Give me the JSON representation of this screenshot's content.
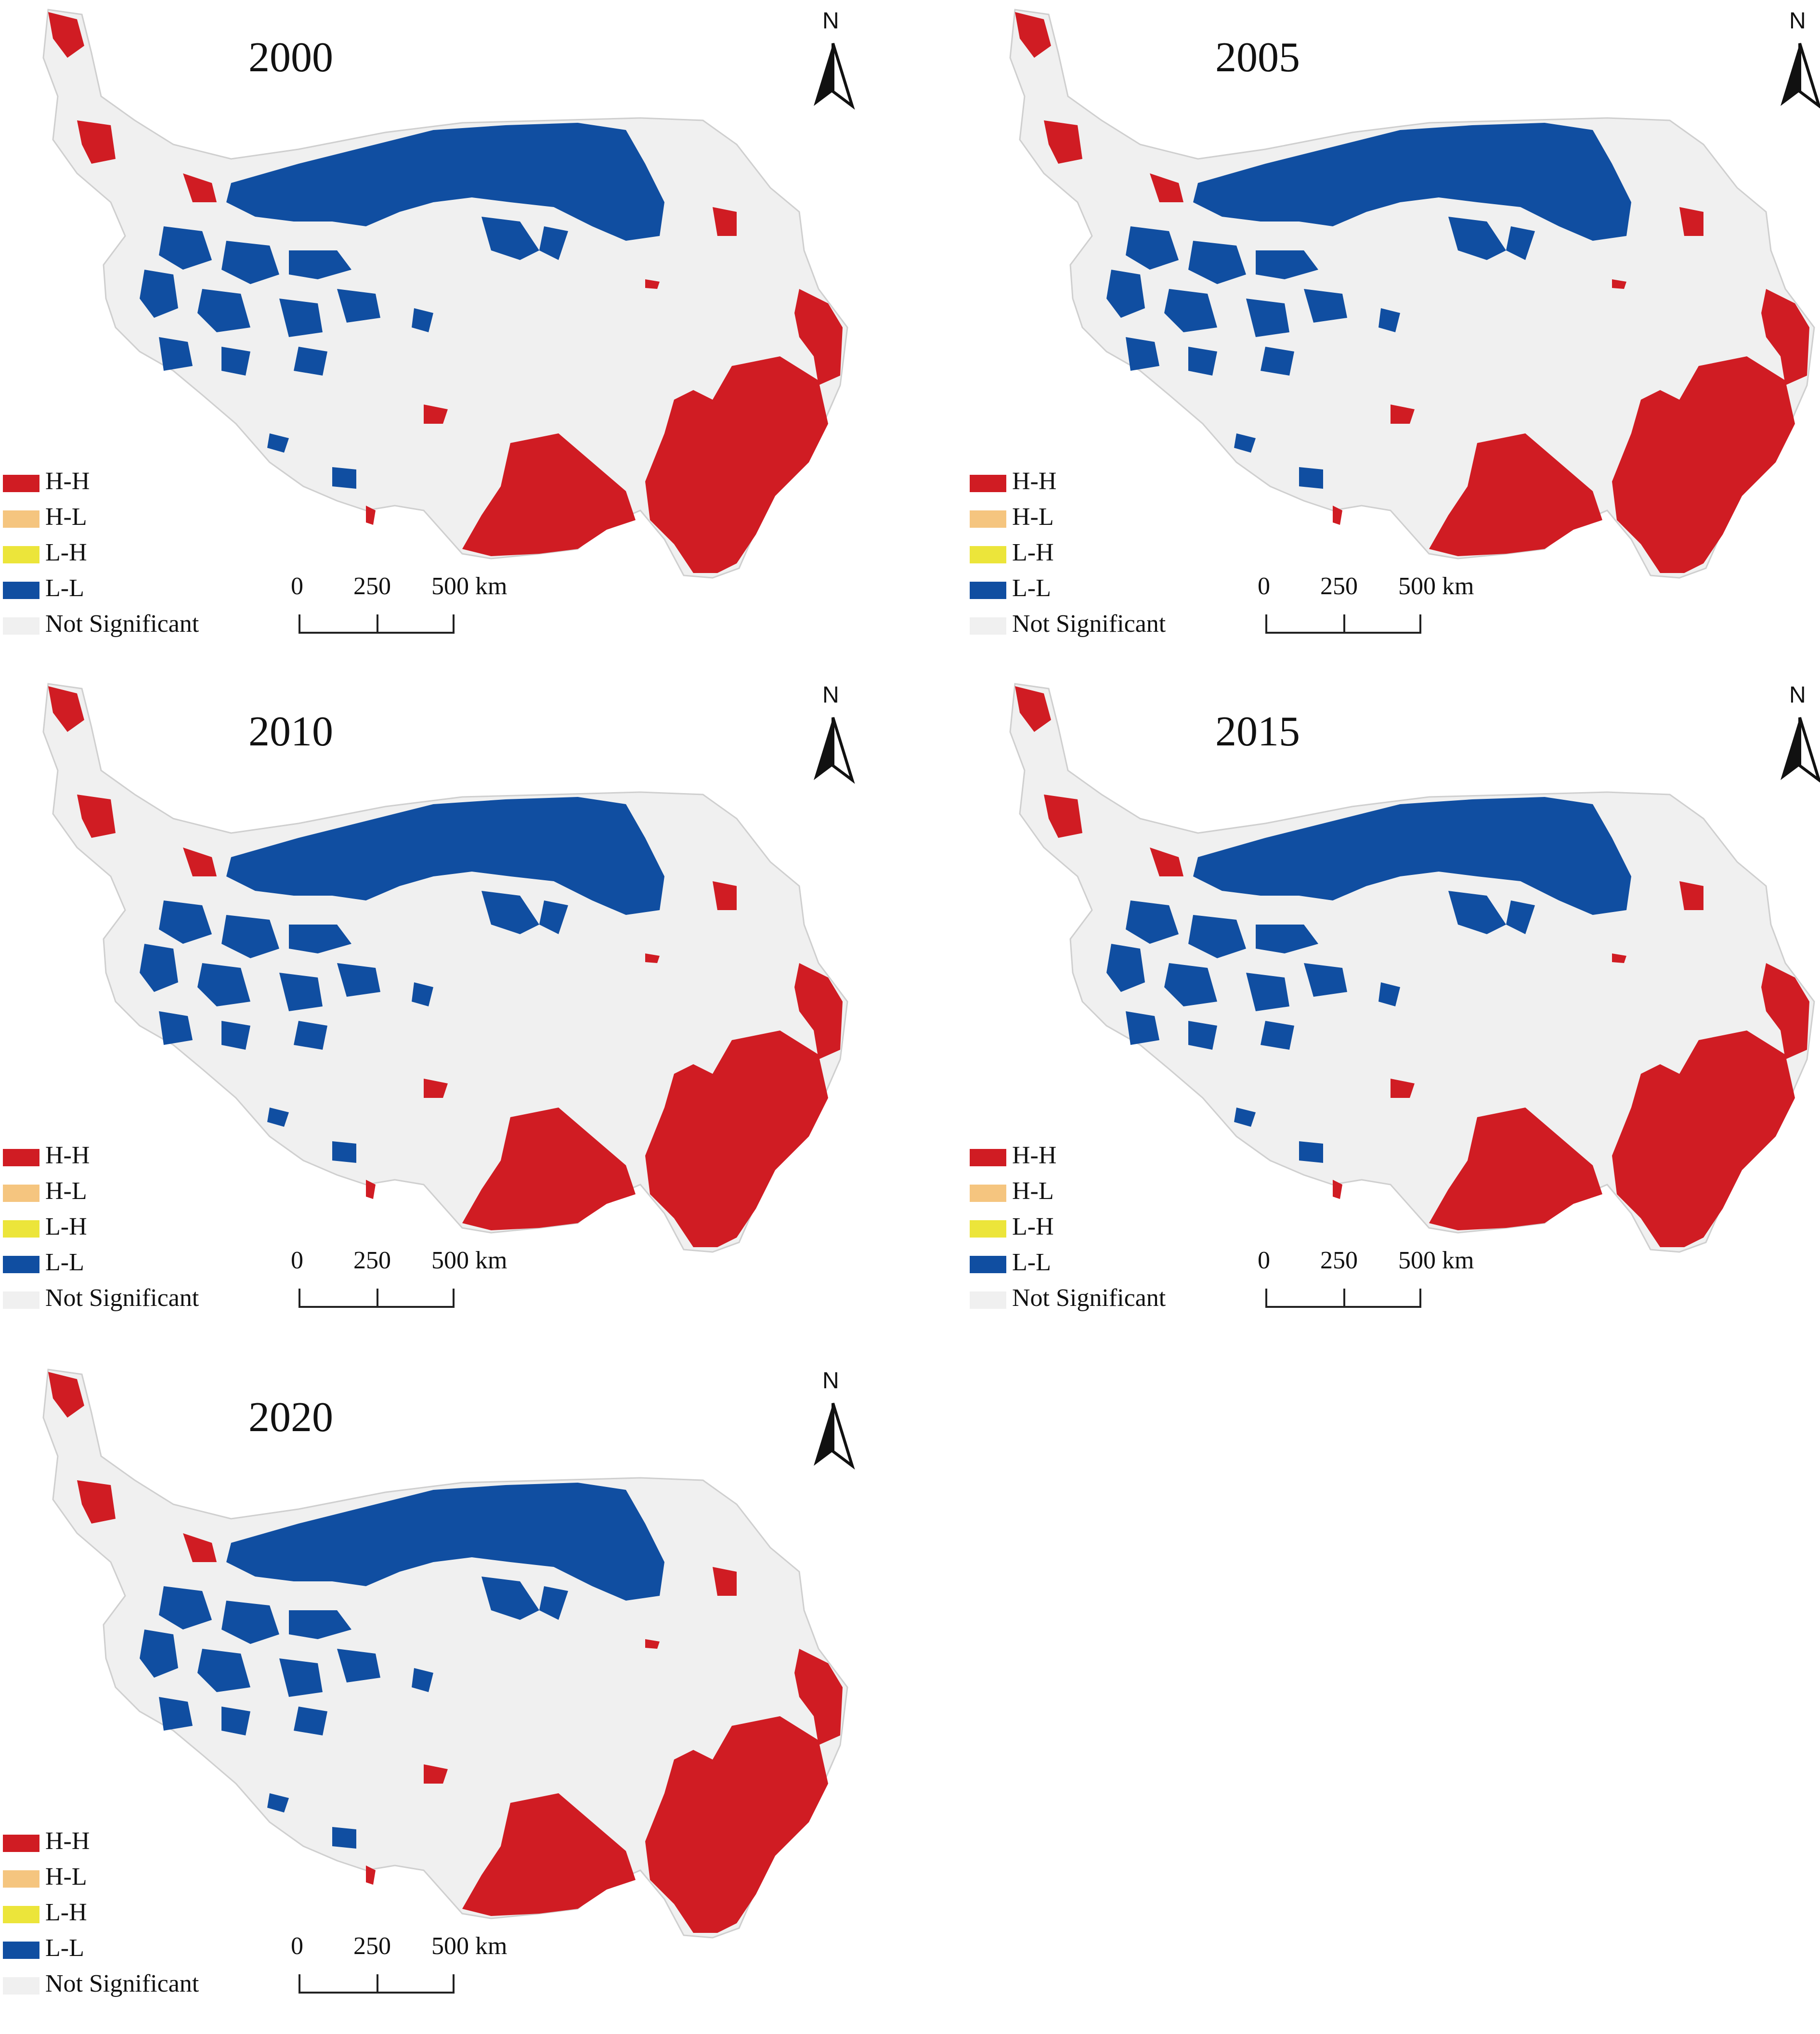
{
  "colors": {
    "hh": "#d01c23",
    "hl": "#f5c57f",
    "lh": "#ece53a",
    "ll": "#104ea1",
    "ns": "#f0f0f0",
    "outline": "#cfcfcf"
  },
  "legend": [
    {
      "key": "hh",
      "label": "H-H"
    },
    {
      "key": "hl",
      "label": "H-L"
    },
    {
      "key": "lh",
      "label": "L-H"
    },
    {
      "key": "ll",
      "label": "L-L"
    },
    {
      "key": "ns",
      "label": "Not Significant"
    }
  ],
  "north_label": "N",
  "scale": {
    "ticks": [
      "0",
      "250",
      "500 km"
    ]
  },
  "panels": [
    {
      "year": "2000"
    },
    {
      "year": "2005"
    },
    {
      "year": "2010"
    },
    {
      "year": "2015"
    },
    {
      "year": "2020"
    }
  ]
}
